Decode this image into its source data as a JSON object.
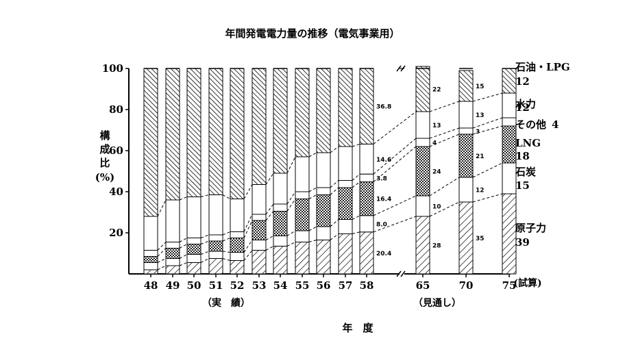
{
  "chart_data": {
    "type": "bar",
    "title": "年間発電電力量の推移（電気事業用）",
    "ylabel": "構成比 (%)",
    "xlabel": "年　度",
    "ylim": [
      0,
      100
    ],
    "yticks": [
      "20",
      "40",
      "60",
      "80",
      "100"
    ],
    "categories": [
      "48",
      "49",
      "50",
      "51",
      "52",
      "53",
      "54",
      "55",
      "56",
      "57",
      "58",
      "65",
      "70",
      "75"
    ],
    "group_labels": {
      "actual": "（実　績）",
      "forecast": "（見通し）",
      "trial": "(試算)"
    },
    "stack_order_bottom_to_top": [
      "原子力",
      "石炭",
      "LNG",
      "その他",
      "水力",
      "石油・LPG"
    ],
    "series": [
      {
        "name": "原子力",
        "values": [
          2,
          4,
          5.5,
          7.5,
          6.5,
          11.5,
          13.5,
          15.5,
          16.5,
          19.5,
          20.4,
          28,
          35,
          39
        ]
      },
      {
        "name": "石炭",
        "values": [
          3.5,
          3.5,
          4,
          3.5,
          4,
          5,
          5,
          5.5,
          6.5,
          7,
          8.0,
          10,
          12,
          15
        ]
      },
      {
        "name": "LNG",
        "values": [
          3,
          5,
          5,
          5,
          7,
          9.5,
          12,
          15.5,
          15.5,
          15.5,
          16.4,
          24,
          21,
          18
        ]
      },
      {
        "name": "その他",
        "values": [
          3,
          3,
          3,
          3,
          3,
          3,
          3.5,
          3.5,
          3.5,
          3.5,
          3.8,
          4,
          3,
          4
        ]
      },
      {
        "name": "水力",
        "values": [
          16.5,
          20.5,
          20,
          19.5,
          16,
          14.5,
          15,
          17,
          17,
          16.5,
          14.6,
          13,
          13,
          12
        ]
      },
      {
        "name": "石油・LPG",
        "values": [
          72,
          64,
          62.5,
          61.5,
          63.5,
          56.5,
          51,
          43,
          41,
          38,
          36.8,
          22,
          15,
          12
        ]
      }
    ],
    "data_labels": {
      "58": [
        "20.4",
        "8.0",
        "16.4",
        "3.8",
        "14.6",
        "36.8"
      ],
      "65": [
        "28",
        "10",
        "24",
        "4",
        "13",
        "22"
      ],
      "70": [
        "35",
        "12",
        "21",
        "3",
        "13",
        "15"
      ]
    },
    "right_legend": [
      {
        "name": "石油・LPG",
        "value": "12"
      },
      {
        "name": "水力",
        "value": "12"
      },
      {
        "name": "その他",
        "value": "4"
      },
      {
        "name": "LNG",
        "value": "18"
      },
      {
        "name": "石炭",
        "value": "15"
      },
      {
        "name": "原子力",
        "value": "39"
      }
    ]
  }
}
